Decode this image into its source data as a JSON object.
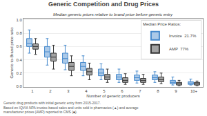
{
  "chart_data": {
    "type": "box",
    "title": "Generic Competition and Drug Prices",
    "subtitle": "Median generic prices relative to brand price before generic entry",
    "xlabel": "Number of generic producers",
    "ylabel": "Generic-to-Brand price ratio",
    "footnote": "Generic drug products with initial generic entry from 2015-2017.\nBased on IQVIA NPA invoice-based sales and units sold in pharmacies (▲) and average\nmanufacturer prices (AMP) reported to CMS (■).",
    "legend_title": "Median Price Ratios:",
    "legend": "upper right",
    "grid": true,
    "categories": [
      "1",
      "2",
      "3",
      "4",
      "5",
      "6",
      "7",
      "8",
      "9",
      "10+"
    ],
    "series": [
      {
        "name": "Invoice  21.7%",
        "color": "#4488cc",
        "median": [
          0.65,
          0.52,
          0.42,
          0.3,
          0.2,
          0.14,
          0.13,
          0.13,
          0.06,
          0.05
        ],
        "q25": [
          0.6,
          0.44,
          0.35,
          0.24,
          0.16,
          0.1,
          0.09,
          0.1,
          0.04,
          0.03
        ],
        "q75": [
          0.72,
          0.6,
          0.5,
          0.36,
          0.26,
          0.18,
          0.17,
          0.17,
          0.09,
          0.07
        ],
        "whislo": [
          0.5,
          0.32,
          0.25,
          0.16,
          0.1,
          0.06,
          0.05,
          0.06,
          0.02,
          0.02
        ],
        "whishi": [
          0.85,
          0.72,
          0.62,
          0.46,
          0.34,
          0.26,
          0.23,
          0.22,
          0.14,
          0.11
        ]
      },
      {
        "name": "AMP  77%",
        "color": "#333333",
        "median": [
          0.6,
          0.44,
          0.3,
          0.22,
          0.14,
          0.09,
          0.09,
          0.1,
          0.04,
          0.04
        ],
        "q25": [
          0.56,
          0.38,
          0.24,
          0.17,
          0.1,
          0.06,
          0.06,
          0.07,
          0.02,
          0.02
        ],
        "q75": [
          0.64,
          0.5,
          0.36,
          0.27,
          0.18,
          0.13,
          0.12,
          0.14,
          0.06,
          0.06
        ],
        "whislo": [
          0.48,
          0.26,
          0.16,
          0.1,
          0.06,
          0.03,
          0.03,
          0.04,
          0.01,
          0.01
        ],
        "whishi": [
          0.72,
          0.62,
          0.46,
          0.35,
          0.26,
          0.19,
          0.18,
          0.2,
          0.09,
          0.08
        ]
      }
    ],
    "ylim": [
      -0.01,
      1.02
    ],
    "yticks": [
      {
        "value": 0.0,
        "label": "0.0"
      },
      0.2,
      0.4,
      0.6,
      0.8,
      {
        "value": 1.0,
        "label": "1.0"
      }
    ]
  }
}
